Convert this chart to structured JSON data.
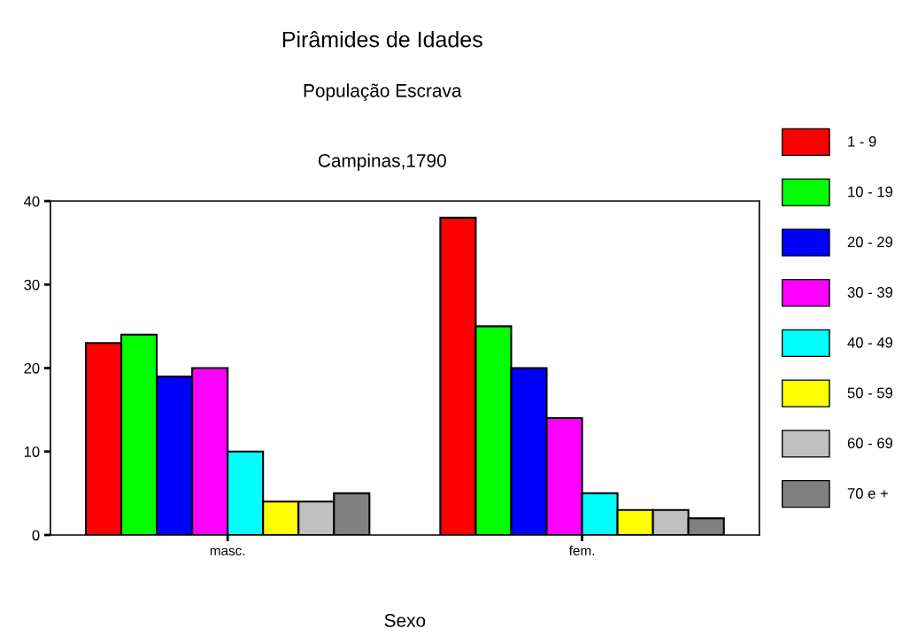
{
  "chart_data": {
    "type": "bar",
    "title": "Pirâmides de Idades",
    "subtitle": "População Escrava",
    "annotations": [
      "Campinas,1790"
    ],
    "xlabel": "Sexo",
    "categories": [
      "masc.",
      "fem."
    ],
    "series": [
      {
        "name": "1 - 9",
        "color": "#ff0000",
        "values": [
          23,
          38
        ]
      },
      {
        "name": "10 - 19",
        "color": "#00ff00",
        "values": [
          24,
          25
        ]
      },
      {
        "name": "20 - 29",
        "color": "#0000ff",
        "values": [
          19,
          20
        ]
      },
      {
        "name": "30 - 39",
        "color": "#ff00ff",
        "values": [
          20,
          14
        ]
      },
      {
        "name": "40 - 49",
        "color": "#00ffff",
        "values": [
          10,
          5
        ]
      },
      {
        "name": "50 - 59",
        "color": "#ffff00",
        "values": [
          4,
          3
        ]
      },
      {
        "name": "60 - 69",
        "color": "#c0c0c0",
        "values": [
          4,
          3
        ]
      },
      {
        "name": "70 e +",
        "color": "#808080",
        "values": [
          5,
          2
        ]
      }
    ],
    "ylim": [
      0,
      40
    ],
    "yticks": [
      0,
      10,
      20,
      30,
      40
    ],
    "grid": false,
    "legend": "right"
  }
}
